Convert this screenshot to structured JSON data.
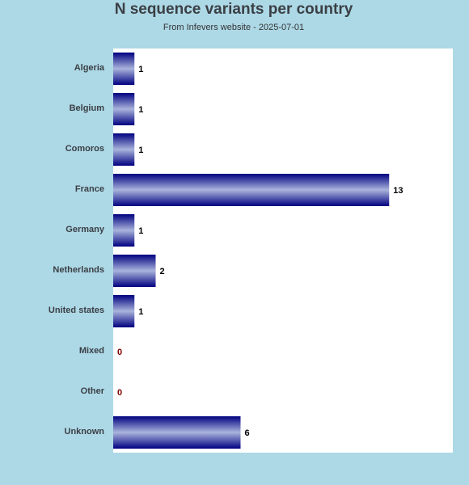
{
  "chart_data": {
    "type": "bar",
    "orientation": "horizontal",
    "title": "N sequence variants per country",
    "subtitle": "From Infevers website - 2025-07-01",
    "categories": [
      "Algeria",
      "Belgium",
      "Comoros",
      "France",
      "Germany",
      "Netherlands",
      "United states",
      "Mixed",
      "Other",
      "Unknown"
    ],
    "values": [
      1,
      1,
      1,
      13,
      1,
      2,
      1,
      0,
      0,
      6
    ],
    "xlim": [
      0,
      16
    ],
    "grid": false,
    "legend": "none",
    "colors": {
      "background": "#add8e6",
      "plot_background": "#ffffff",
      "bar_dark": "#000080",
      "bar_light": "#aab4dc",
      "value_label": "#000000",
      "zero_label": "#800000"
    }
  }
}
